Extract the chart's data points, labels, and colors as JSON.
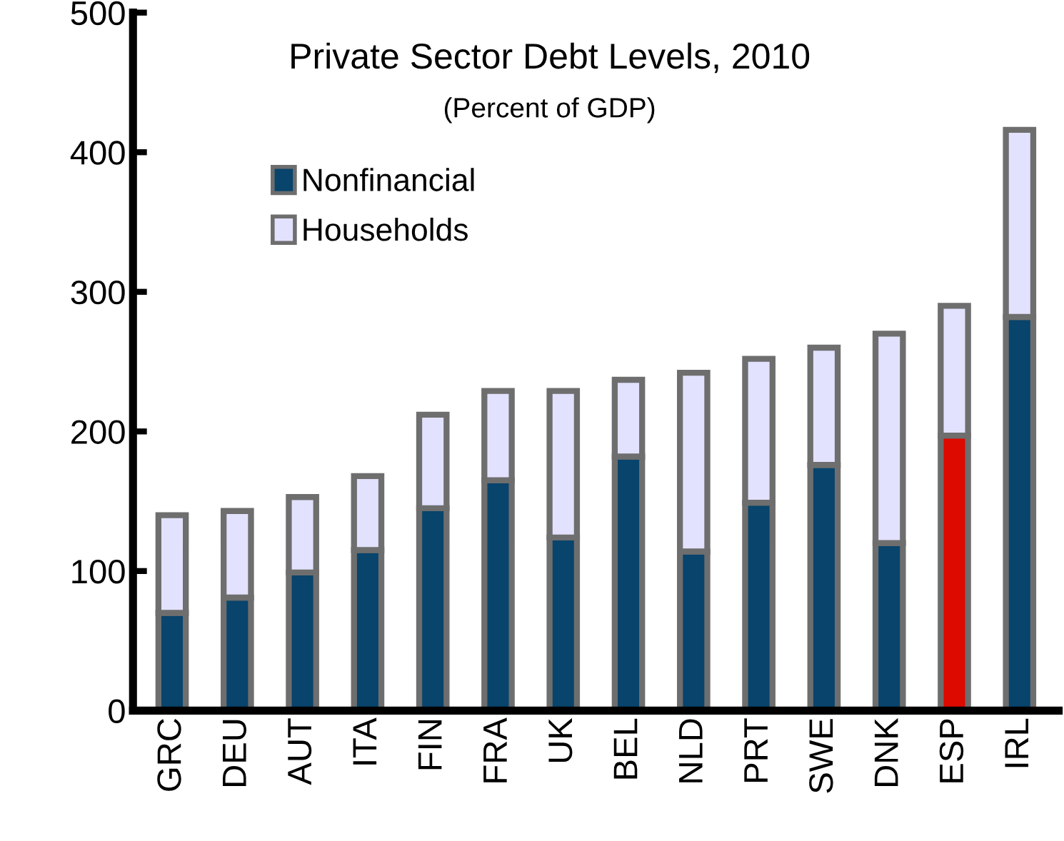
{
  "chart_data": {
    "type": "bar",
    "title": "Private Sector Debt Levels, 2010",
    "subtitle": "(Percent of GDP)",
    "stacked": true,
    "categories": [
      "GRC",
      "DEU",
      "AUT",
      "ITA",
      "FIN",
      "FRA",
      "UK",
      "BEL",
      "NLD",
      "PRT",
      "SWE",
      "DNK",
      "ESP",
      "IRL"
    ],
    "series": [
      {
        "name": "Nonfinancial",
        "color": "#08446c",
        "colors": [
          "#08446c",
          "#08446c",
          "#08446c",
          "#08446c",
          "#08446c",
          "#08446c",
          "#08446c",
          "#08446c",
          "#08446c",
          "#08446c",
          "#08446c",
          "#08446c",
          "#dd0a00",
          "#08446c"
        ],
        "values": [
          70,
          81,
          99,
          115,
          145,
          165,
          124,
          182,
          114,
          149,
          176,
          120,
          197,
          282
        ]
      },
      {
        "name": "Households",
        "color": "#e2e2ff",
        "values": [
          70,
          62,
          54,
          53,
          67,
          64,
          105,
          55,
          128,
          103,
          84,
          150,
          93,
          134
        ]
      }
    ],
    "ylim": [
      0,
      500
    ],
    "yticks": [
      0,
      100,
      200,
      300,
      400,
      500
    ],
    "grid": false,
    "legend": "top left"
  }
}
